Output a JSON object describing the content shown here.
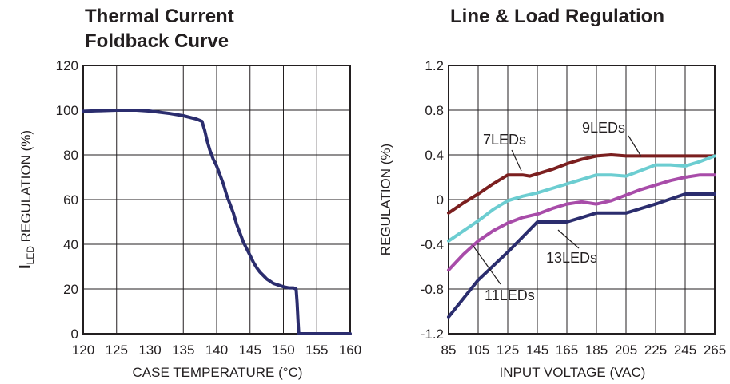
{
  "chart_data": [
    {
      "type": "line",
      "title_line1": "Thermal Current",
      "title_line2": "Foldback Curve",
      "xlabel": "CASE TEMPERATURE (°C)",
      "ylabel_main": "I",
      "ylabel_sub": "LED",
      "ylabel_rest": " REGULATION (%)",
      "xlim": [
        120,
        160
      ],
      "ylim": [
        0,
        120
      ],
      "grid": true,
      "x_ticks": [
        "120",
        "125",
        "130",
        "135",
        "140",
        "145",
        "150",
        "155",
        "160"
      ],
      "y_ticks": [
        "0",
        "20",
        "40",
        "60",
        "80",
        "100",
        "120"
      ],
      "series": [
        {
          "color": "#2b2d6e",
          "x": [
            120,
            122,
            125,
            128,
            130,
            133,
            135,
            137,
            137.8,
            138.2,
            138.6,
            139,
            139.5,
            140,
            140.5,
            141,
            141.5,
            142,
            142.5,
            143,
            143.5,
            144,
            144.5,
            145,
            145.5,
            146,
            146.5,
            147,
            147.5,
            148,
            148.5,
            149,
            150,
            150.8,
            151.5,
            151.9,
            152.05,
            152.2,
            152.3,
            153,
            155,
            157,
            160
          ],
          "y": [
            99.5,
            99.7,
            100,
            100,
            99.6,
            98.5,
            97.5,
            96,
            95,
            91,
            86,
            82,
            78,
            75,
            71,
            67,
            62,
            58,
            54,
            49,
            45,
            41,
            38,
            35,
            32,
            29.5,
            27.5,
            26,
            24.5,
            23.5,
            22.5,
            22,
            21,
            20.5,
            20.5,
            20,
            14,
            5,
            0,
            0,
            0,
            0,
            0
          ]
        }
      ]
    },
    {
      "type": "line",
      "title": "Line & Load Regulation",
      "xlabel": "INPUT VOLTAGE (VAC)",
      "ylabel": "REGULATION (%)",
      "xlim": [
        85,
        265
      ],
      "ylim": [
        -1.2,
        1.2
      ],
      "grid": true,
      "x_ticks": [
        "85",
        "105",
        "125",
        "145",
        "165",
        "185",
        "205",
        "225",
        "245",
        "265"
      ],
      "y_ticks": [
        "-1.2",
        "-0.8",
        "-0.4",
        "0",
        "0.4",
        "0.8",
        "1.2"
      ],
      "series": [
        {
          "name": "7LEDs",
          "color": "#7b1f1f",
          "x": [
            85,
            95,
            105,
            115,
            125,
            135,
            140,
            145,
            155,
            165,
            175,
            185,
            195,
            205,
            215,
            225,
            235,
            245,
            255,
            265
          ],
          "y": [
            -0.12,
            -0.03,
            0.05,
            0.14,
            0.22,
            0.22,
            0.21,
            0.23,
            0.27,
            0.32,
            0.36,
            0.39,
            0.4,
            0.39,
            0.39,
            0.39,
            0.39,
            0.39,
            0.39,
            0.39
          ]
        },
        {
          "name": "9LEDs",
          "color": "#6ccdd1",
          "x": [
            85,
            95,
            105,
            115,
            125,
            135,
            145,
            155,
            165,
            175,
            185,
            195,
            205,
            215,
            225,
            235,
            245,
            255,
            265
          ],
          "y": [
            -0.37,
            -0.28,
            -0.19,
            -0.09,
            -0.01,
            0.03,
            0.06,
            0.1,
            0.14,
            0.18,
            0.22,
            0.22,
            0.21,
            0.26,
            0.31,
            0.31,
            0.3,
            0.34,
            0.39
          ]
        },
        {
          "name": "11LEDs",
          "color": "#2b2d6e",
          "x": [
            85,
            105,
            125,
            145,
            165,
            185,
            205,
            225,
            245,
            265
          ],
          "y": [
            -1.05,
            -0.72,
            -0.47,
            -0.2,
            -0.2,
            -0.12,
            -0.12,
            -0.04,
            0.05,
            0.05
          ]
        },
        {
          "name": "13LEDs",
          "color": "#a84ca9",
          "x": [
            85,
            95,
            105,
            115,
            125,
            135,
            145,
            155,
            165,
            175,
            185,
            195,
            205,
            215,
            225,
            235,
            245,
            255,
            265
          ],
          "y": [
            -0.63,
            -0.49,
            -0.37,
            -0.28,
            -0.21,
            -0.16,
            -0.13,
            -0.08,
            -0.04,
            -0.02,
            -0.04,
            -0.01,
            0.04,
            0.09,
            0.13,
            0.17,
            0.2,
            0.22,
            0.22
          ]
        }
      ]
    }
  ]
}
